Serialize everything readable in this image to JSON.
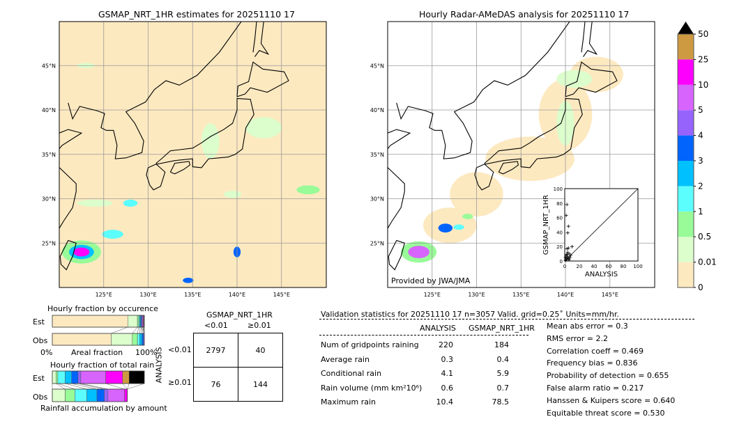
{
  "left_map": {
    "title": "GSMAP_NRT_1HR estimates for 20251110 17",
    "lon_ticks": [
      "125°E",
      "130°E",
      "135°E",
      "140°E",
      "145°E"
    ],
    "lat_ticks": [
      "45°N",
      "40°N",
      "35°N",
      "30°N",
      "25°N"
    ],
    "background": "#fde9c0"
  },
  "right_map": {
    "title": "Hourly Radar-AMeDAS analysis for 20251110 17",
    "lon_ticks": [
      "125°E",
      "130°E",
      "135°E",
      "140°E",
      "145°E"
    ],
    "lat_ticks": [
      "45°N",
      "40°N",
      "35°N",
      "30°N",
      "25°N"
    ],
    "credit": "Provided by JWA/JMA"
  },
  "colorbar": {
    "labels": [
      "0",
      "0.01",
      "0.5",
      "1",
      "2",
      "3",
      "4",
      "5",
      "10",
      "25",
      "50"
    ],
    "colors": [
      "#fde9c0",
      "#dcfdcc",
      "#98fb98",
      "#5cfdfd",
      "#00c0fd",
      "#0064fd",
      "#9664fd",
      "#d764fd",
      "#fd00fd",
      "#cd9a41"
    ],
    "extend_color": "#000000"
  },
  "chart_data": [
    {
      "type": "scatter",
      "title": "",
      "xlabel": "ANALYSIS",
      "ylabel": "GSMAP_NRT_1HR",
      "xlim": [
        0,
        100
      ],
      "ylim": [
        0,
        100
      ],
      "ticks": [
        "0",
        "20",
        "40",
        "60",
        "80",
        "100"
      ],
      "points": [
        [
          3,
          78
        ],
        [
          2,
          63
        ],
        [
          5,
          48
        ],
        [
          4,
          39
        ],
        [
          10,
          20
        ],
        [
          5,
          18
        ],
        [
          3,
          17
        ],
        [
          6,
          10
        ],
        [
          2,
          8
        ],
        [
          4,
          6
        ],
        [
          1,
          5
        ],
        [
          3,
          4
        ],
        [
          7,
          5
        ],
        [
          2,
          2
        ],
        [
          5,
          3
        ],
        [
          1,
          1
        ],
        [
          8,
          8
        ],
        [
          4,
          12
        ],
        [
          6,
          2
        ],
        [
          3,
          9
        ]
      ]
    },
    {
      "type": "bar",
      "title": "Hourly fraction by occurence",
      "xlabel": "Areal fraction",
      "x_left": "0%",
      "x_right": "100%",
      "series": [
        {
          "name": "Est",
          "values": [
            82,
            10.5,
            1.5,
            1,
            1,
            1,
            0.8,
            0.8,
            0.7,
            0.4,
            0.3
          ]
        },
        {
          "name": "Obs",
          "values": [
            64,
            23,
            5.5,
            2.5,
            2.5,
            1.5,
            1,
            0,
            0,
            0,
            0
          ]
        }
      ]
    },
    {
      "type": "bar",
      "title": "Hourly fraction of total rain",
      "xlabel": "Rainfall accumulation by amount",
      "series": [
        {
          "name": "Est",
          "values": [
            0,
            4,
            2,
            8,
            7,
            7,
            3,
            27,
            18.3,
            7.2,
            16.5
          ]
        },
        {
          "name": "Obs",
          "values": [
            0,
            14,
            10.5,
            13,
            11,
            8,
            4,
            18,
            3,
            0,
            0
          ]
        }
      ]
    }
  ],
  "contingency": {
    "title": "GSMAP_NRT_1HR",
    "col_labels": [
      "<0.01",
      "≥0.01"
    ],
    "row_axis": "ANALYSIS",
    "row_labels": [
      "<0.01",
      "≥0.01"
    ],
    "cells": [
      [
        "2797",
        "40"
      ],
      [
        "76",
        "144"
      ]
    ]
  },
  "stats": {
    "header": "Validation statistics for 20251110 17  n=3057 Valid. grid=0.25˚ Units=mm/hr.",
    "col1": "ANALYSIS",
    "col2": "GSMAP_NRT_1HR",
    "rows": [
      {
        "label": "Num of gridpoints raining",
        "a": "220",
        "g": "184"
      },
      {
        "label": "Average rain",
        "a": "0.3",
        "g": "0.4"
      },
      {
        "label": "Conditional rain",
        "a": "4.1",
        "g": "5.9"
      },
      {
        "label": "Rain volume (mm km²10⁶)",
        "a": "0.6",
        "g": "0.7"
      },
      {
        "label": "Maximum rain",
        "a": "10.4",
        "g": "78.5"
      }
    ],
    "scores": [
      "Mean abs error =    0.3",
      "RMS error =    2.2",
      "Correlation coeff =  0.469",
      "Frequency bias =  0.836",
      "Probability of detection =  0.655",
      "False alarm ratio =  0.217",
      "Hanssen & Kuipers score =  0.640",
      "Equitable threat score =  0.530"
    ]
  }
}
